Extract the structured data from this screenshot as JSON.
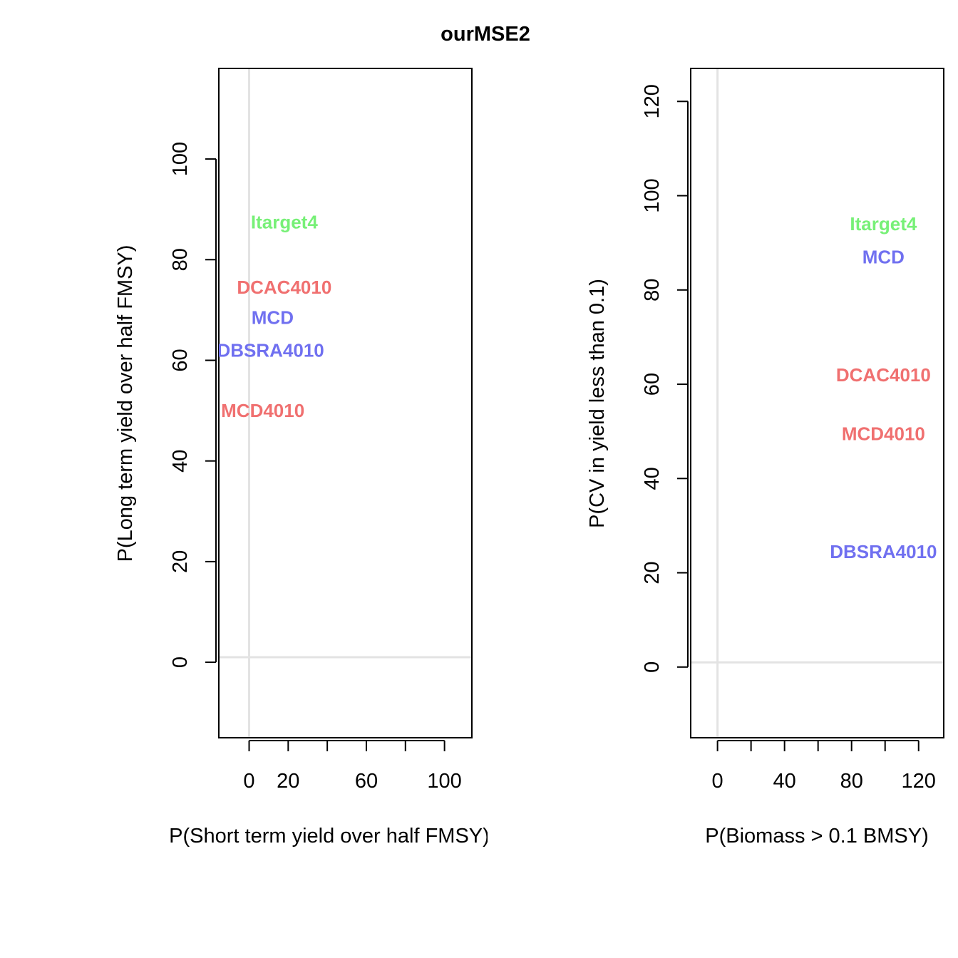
{
  "title": "ourMSE2",
  "chart_data": [
    {
      "type": "scatter",
      "xlabel": "P(Short term yield over half FMSY)",
      "ylabel": "P(Long term yield over half FMSY)",
      "xlim": [
        -15.5,
        114
      ],
      "ylim": [
        -15,
        118
      ],
      "x_tick_positions": [
        0,
        20,
        40,
        60,
        80,
        100
      ],
      "x_tick_labels": [
        "0",
        "20",
        "",
        "60",
        "",
        "100"
      ],
      "y_ticks": [
        0,
        20,
        40,
        60,
        80,
        100
      ],
      "reference_lines": {
        "x": 0,
        "y": 1
      },
      "points": [
        {
          "label": "Itarget4",
          "x": 18,
          "y": 87.5,
          "color": "#77f077"
        },
        {
          "label": "DCAC4010",
          "x": 18,
          "y": 74.5,
          "color": "#f07070"
        },
        {
          "label": "MCD",
          "x": 12,
          "y": 68.5,
          "color": "#7070f0"
        },
        {
          "label": "DBSRA4010",
          "x": 11,
          "y": 62,
          "color": "#7070f0"
        },
        {
          "label": "MCD4010",
          "x": 7,
          "y": 50,
          "color": "#f07070"
        }
      ]
    },
    {
      "type": "scatter",
      "xlabel": "P(Biomass > 0.1 BMSY)",
      "ylabel": "P(CV in yield less than 0.1)",
      "xlim": [
        -16,
        135
      ],
      "ylim": [
        -15,
        127
      ],
      "x_tick_positions": [
        0,
        20,
        40,
        60,
        80,
        100,
        120
      ],
      "x_tick_labels": [
        "0",
        "",
        "40",
        "",
        "80",
        "",
        "120"
      ],
      "y_ticks": [
        0,
        20,
        40,
        60,
        80,
        100,
        120
      ],
      "reference_lines": {
        "x": 0,
        "y": 1
      },
      "points": [
        {
          "label": "Itarget4",
          "x": 99,
          "y": 94,
          "color": "#77f077"
        },
        {
          "label": "MCD",
          "x": 99,
          "y": 87,
          "color": "#7070f0"
        },
        {
          "label": "DCAC4010",
          "x": 99,
          "y": 62,
          "color": "#f07070"
        },
        {
          "label": "MCD4010",
          "x": 99,
          "y": 49.5,
          "color": "#f07070"
        },
        {
          "label": "DBSRA4010",
          "x": 99,
          "y": 24.5,
          "color": "#7070f0"
        }
      ]
    }
  ]
}
